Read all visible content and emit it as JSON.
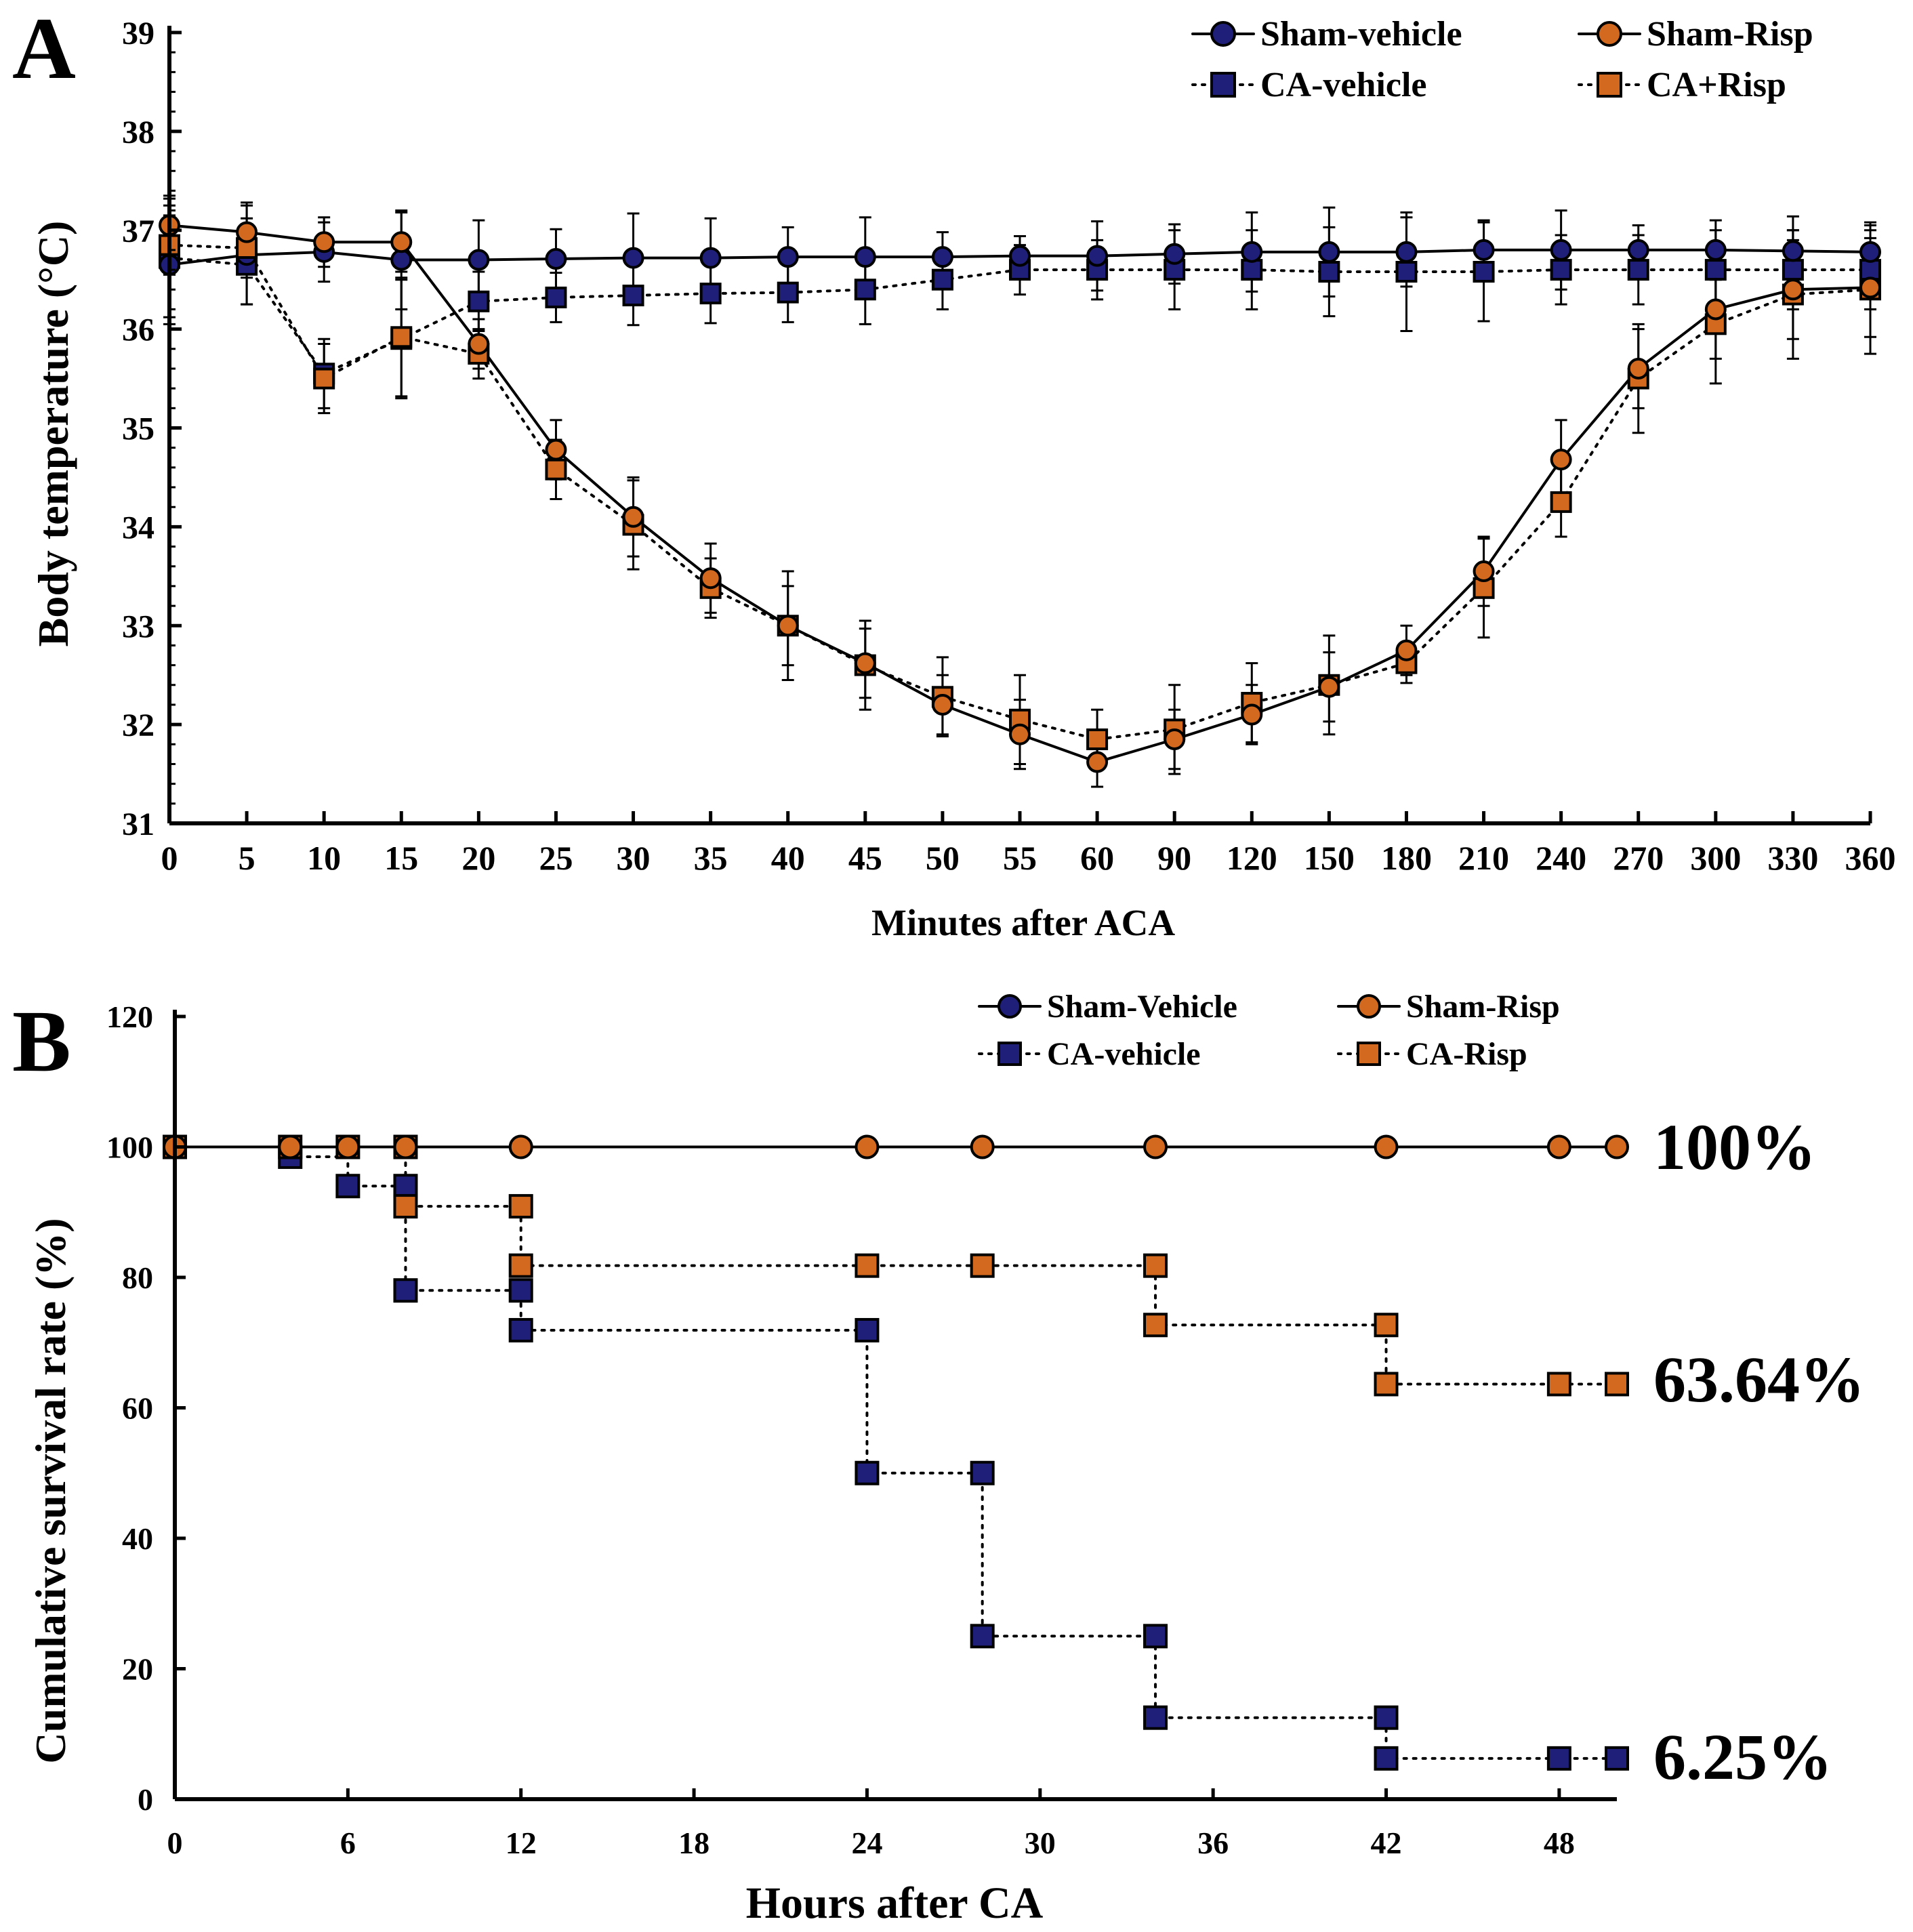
{
  "colors": {
    "navy": "#1f1f7a",
    "orange": "#d2691e",
    "axis": "#000000"
  },
  "chart_data": [
    {
      "type": "line",
      "panel_label": "A",
      "title": "",
      "xlabel": "Minutes after ACA",
      "ylabel": "Body temperature (°C)",
      "ylim": [
        31,
        39
      ],
      "yticks": [
        "31",
        "32",
        "33",
        "34",
        "35",
        "36",
        "37",
        "38",
        "39"
      ],
      "categories": [
        "0",
        "5",
        "10",
        "15",
        "20",
        "25",
        "30",
        "35",
        "40",
        "45",
        "50",
        "55",
        "60",
        "90",
        "120",
        "150",
        "180",
        "210",
        "240",
        "270",
        "300",
        "330",
        "360"
      ],
      "legend": [
        "Sham-vehicle",
        "Sham-Risp",
        "CA-vehicle",
        "CA+Risp"
      ],
      "series": [
        {
          "name": "Sham-vehicle",
          "color": "navy",
          "marker": "circle",
          "dash": "solid",
          "values": [
            36.65,
            36.75,
            36.78,
            36.7,
            36.7,
            36.71,
            36.72,
            36.72,
            36.73,
            36.73,
            36.73,
            36.74,
            36.74,
            36.76,
            36.78,
            36.78,
            36.78,
            36.8,
            36.8,
            36.8,
            36.8,
            36.79,
            36.78
          ],
          "errors": [
            0.6,
            0.5,
            0.3,
            0.5,
            0.4,
            0.3,
            0.45,
            0.4,
            0.3,
            0.4,
            0.25,
            0.2,
            0.35,
            0.3,
            0.4,
            0.45,
            0.35,
            0.3,
            0.4,
            0.25,
            0.3,
            0.35,
            0.3
          ]
        },
        {
          "name": "Sham-Risp",
          "color": "orange",
          "marker": "circle",
          "dash": "solid",
          "values": [
            37.05,
            36.98,
            36.88,
            36.88,
            35.85,
            34.78,
            34.1,
            33.48,
            33.0,
            32.62,
            32.2,
            31.9,
            31.62,
            31.85,
            32.1,
            32.38,
            32.75,
            33.55,
            34.68,
            35.6,
            36.2,
            36.4,
            36.42
          ],
          "errors": [
            0.3,
            0.3,
            0.25,
            0.3,
            0.25,
            0.3,
            0.4,
            0.35,
            0.4,
            0.35,
            0.3,
            0.35,
            0.25,
            0.3,
            0.3,
            0.35,
            0.25,
            0.35,
            0.4,
            0.4,
            0.5,
            0.5,
            0.5
          ]
        },
        {
          "name": "CA-vehicle",
          "color": "navy",
          "marker": "square",
          "dash": "dotted",
          "values": [
            36.72,
            36.65,
            35.55,
            35.9,
            36.28,
            36.32,
            36.34,
            36.36,
            36.37,
            36.4,
            36.5,
            36.6,
            36.6,
            36.6,
            36.6,
            36.58,
            36.58,
            36.58,
            36.6,
            36.6,
            36.6,
            36.6,
            36.6
          ],
          "errors": [
            0.6,
            0.4,
            0.35,
            0.6,
            0.3,
            0.25,
            0.3,
            0.3,
            0.3,
            0.35,
            0.3,
            0.25,
            0.3,
            0.4,
            0.4,
            0.45,
            0.6,
            0.5,
            0.35,
            0.35,
            0.4,
            0.4,
            0.4
          ]
        },
        {
          "name": "CA+Risp",
          "color": "orange",
          "marker": "square",
          "dash": "dotted",
          "values": [
            36.85,
            36.82,
            35.5,
            35.92,
            35.75,
            34.58,
            34.02,
            33.38,
            33.0,
            32.6,
            32.28,
            32.05,
            31.85,
            31.95,
            32.22,
            32.4,
            32.62,
            33.38,
            34.25,
            35.5,
            36.05,
            36.35,
            36.4
          ],
          "errors": [
            0.3,
            0.3,
            0.35,
            0.6,
            0.25,
            0.3,
            0.45,
            0.3,
            0.55,
            0.45,
            0.4,
            0.45,
            0.3,
            0.45,
            0.4,
            0.5,
            0.2,
            0.5,
            0.35,
            0.55,
            0.6,
            0.65,
            0.65
          ]
        }
      ]
    },
    {
      "type": "line",
      "panel_label": "B",
      "title": "",
      "xlabel": "Hours after CA",
      "ylabel": "Cumulative survival rate (%)",
      "xlim": [
        0,
        50
      ],
      "ylim": [
        0,
        120
      ],
      "xticks": [
        "0",
        "6",
        "12",
        "18",
        "24",
        "30",
        "36",
        "42",
        "48"
      ],
      "yticks": [
        "0",
        "20",
        "40",
        "60",
        "80",
        "100",
        "120"
      ],
      "legend": [
        "Sham-Vehicle",
        "Sham-Risp",
        "CA-vehicle",
        "CA-Risp"
      ],
      "annotations": [
        "100%",
        "63.64%",
        "6.25%"
      ],
      "series": [
        {
          "name": "Sham-Vehicle",
          "color": "navy",
          "marker": "circle",
          "dash": "solid",
          "x": [
            0,
            50
          ],
          "y": [
            100,
            100
          ],
          "markers": []
        },
        {
          "name": "Sham-Risp",
          "color": "orange",
          "marker": "circle",
          "dash": "solid",
          "x": [
            0,
            50
          ],
          "y": [
            100,
            100
          ],
          "markers": [
            [
              0,
              100
            ],
            [
              4,
              100
            ],
            [
              6,
              100
            ],
            [
              8,
              100
            ],
            [
              12,
              100
            ],
            [
              24,
              100
            ],
            [
              28,
              100
            ],
            [
              34,
              100
            ],
            [
              42,
              100
            ],
            [
              48,
              100
            ],
            [
              50,
              100
            ]
          ]
        },
        {
          "name": "CA-vehicle",
          "color": "navy",
          "marker": "square",
          "dash": "dotted",
          "x": [
            0,
            4,
            4,
            6,
            6,
            8,
            8,
            12,
            12,
            24,
            24,
            28,
            28,
            34,
            34,
            42,
            42,
            50
          ],
          "y": [
            100,
            100,
            98.5,
            98.5,
            94,
            94,
            78,
            78,
            71.9,
            71.9,
            50,
            50,
            25,
            25,
            12.5,
            12.5,
            6.25,
            6.25
          ],
          "markers": [
            [
              4,
              98.5
            ],
            [
              6,
              94
            ],
            [
              8,
              94
            ],
            [
              8,
              78
            ],
            [
              12,
              78
            ],
            [
              12,
              71.9
            ],
            [
              24,
              71.9
            ],
            [
              24,
              50
            ],
            [
              28,
              50
            ],
            [
              28,
              25
            ],
            [
              34,
              25
            ],
            [
              34,
              12.5
            ],
            [
              42,
              12.5
            ],
            [
              42,
              6.25
            ],
            [
              48,
              6.25
            ],
            [
              50,
              6.25
            ]
          ]
        },
        {
          "name": "CA-Risp",
          "color": "orange",
          "marker": "square",
          "dash": "dotted",
          "x": [
            0,
            8,
            8,
            12,
            12,
            34,
            34,
            42,
            42,
            50
          ],
          "y": [
            100,
            100,
            90.9,
            90.9,
            81.8,
            81.8,
            72.7,
            72.7,
            63.64,
            63.64
          ],
          "markers": [
            [
              0,
              100
            ],
            [
              4,
              100
            ],
            [
              6,
              100
            ],
            [
              8,
              100
            ],
            [
              8,
              90.9
            ],
            [
              12,
              90.9
            ],
            [
              12,
              81.8
            ],
            [
              24,
              81.8
            ],
            [
              28,
              81.8
            ],
            [
              34,
              81.8
            ],
            [
              34,
              72.7
            ],
            [
              42,
              72.7
            ],
            [
              42,
              63.64
            ],
            [
              48,
              63.64
            ],
            [
              50,
              63.64
            ]
          ]
        }
      ]
    }
  ]
}
